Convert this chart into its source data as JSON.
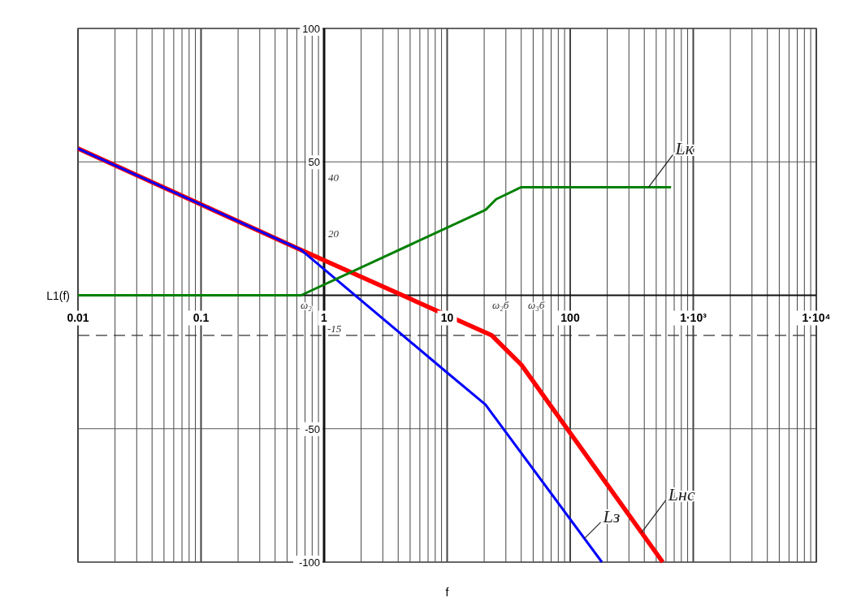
{
  "chart_data": {
    "type": "line",
    "xlabel": "f",
    "ylabel": "L1(f)",
    "log": "x",
    "grid": true,
    "line_style": "solid",
    "marker": "none",
    "xlim": [
      0.01,
      10000
    ],
    "ylim": [
      -100,
      100
    ],
    "xticks": [
      {
        "value": 0.01,
        "label": "0.01"
      },
      {
        "value": 0.02,
        "label": null
      },
      {
        "value": 0.03,
        "label": null
      },
      {
        "value": 0.04,
        "label": null
      },
      {
        "value": 0.05,
        "label": null
      },
      {
        "value": 0.06,
        "label": null
      },
      {
        "value": 0.07,
        "label": null
      },
      {
        "value": 0.08,
        "label": null
      },
      {
        "value": 0.09,
        "label": null
      },
      {
        "value": 0.1,
        "label": "0.1"
      },
      {
        "value": 0.2,
        "label": null
      },
      {
        "value": 0.3,
        "label": null
      },
      {
        "value": 0.4,
        "label": null
      },
      {
        "value": 0.5,
        "label": null
      },
      {
        "value": 0.6,
        "label": null
      },
      {
        "value": 0.7,
        "label": null
      },
      {
        "value": 0.8,
        "label": null
      },
      {
        "value": 0.9,
        "label": null
      },
      {
        "value": 1,
        "label": "1"
      },
      {
        "value": 2,
        "label": null
      },
      {
        "value": 3,
        "label": null
      },
      {
        "value": 4,
        "label": null
      },
      {
        "value": 5,
        "label": null
      },
      {
        "value": 6,
        "label": null
      },
      {
        "value": 7,
        "label": null
      },
      {
        "value": 8,
        "label": null
      },
      {
        "value": 9,
        "label": null
      },
      {
        "value": 10,
        "label": "10"
      },
      {
        "value": 20,
        "label": null
      },
      {
        "value": 30,
        "label": null
      },
      {
        "value": 40,
        "label": null
      },
      {
        "value": 50,
        "label": null
      },
      {
        "value": 60,
        "label": null
      },
      {
        "value": 70,
        "label": null
      },
      {
        "value": 80,
        "label": null
      },
      {
        "value": 90,
        "label": null
      },
      {
        "value": 100,
        "label": "100"
      },
      {
        "value": 200,
        "label": null
      },
      {
        "value": 300,
        "label": null
      },
      {
        "value": 400,
        "label": null
      },
      {
        "value": 500,
        "label": null
      },
      {
        "value": 600,
        "label": null
      },
      {
        "value": 700,
        "label": null
      },
      {
        "value": 800,
        "label": null
      },
      {
        "value": 900,
        "label": null
      },
      {
        "value": 1000,
        "label": "1·10³"
      },
      {
        "value": 2000,
        "label": null
      },
      {
        "value": 3000,
        "label": null
      },
      {
        "value": 4000,
        "label": null
      },
      {
        "value": 5000,
        "label": null
      },
      {
        "value": 6000,
        "label": null
      },
      {
        "value": 7000,
        "label": null
      },
      {
        "value": 8000,
        "label": null
      },
      {
        "value": 9000,
        "label": null
      },
      {
        "value": 10000,
        "label": "1·10⁴"
      }
    ],
    "yticks": [
      100,
      50,
      {
        "value": 0,
        "label": null
      },
      -50,
      -100
    ],
    "series": [
      {
        "name": "Lнс",
        "color": "#ff0000",
        "x": [
          0.01,
          0.65,
          23,
          40,
          565
        ],
        "values": [
          55,
          17,
          -15,
          -26,
          -100
        ]
      },
      {
        "name": "Lз",
        "color": "#0000ff",
        "x": [
          0.01,
          0.65,
          10,
          20.5,
          181
        ],
        "values": [
          55,
          17,
          -29,
          -41,
          -100
        ]
      },
      {
        "name": "Lк",
        "color": "#008000",
        "x": [
          0.01,
          0.65,
          20.5,
          25,
          40,
          660
        ],
        "values": [
          0,
          0,
          32,
          36,
          40.5,
          40.5
        ]
      }
    ],
    "ref_lines": [
      {
        "axis": "y",
        "value": -15,
        "label": null,
        "line_style": "dashed",
        "color": "#333333"
      }
    ],
    "annotations": [
      "40",
      "20",
      {
        "text": "-15",
        "x": 1,
        "y": -15
      },
      "ω₂",
      "ω₂б",
      "ω₃б"
    ]
  }
}
